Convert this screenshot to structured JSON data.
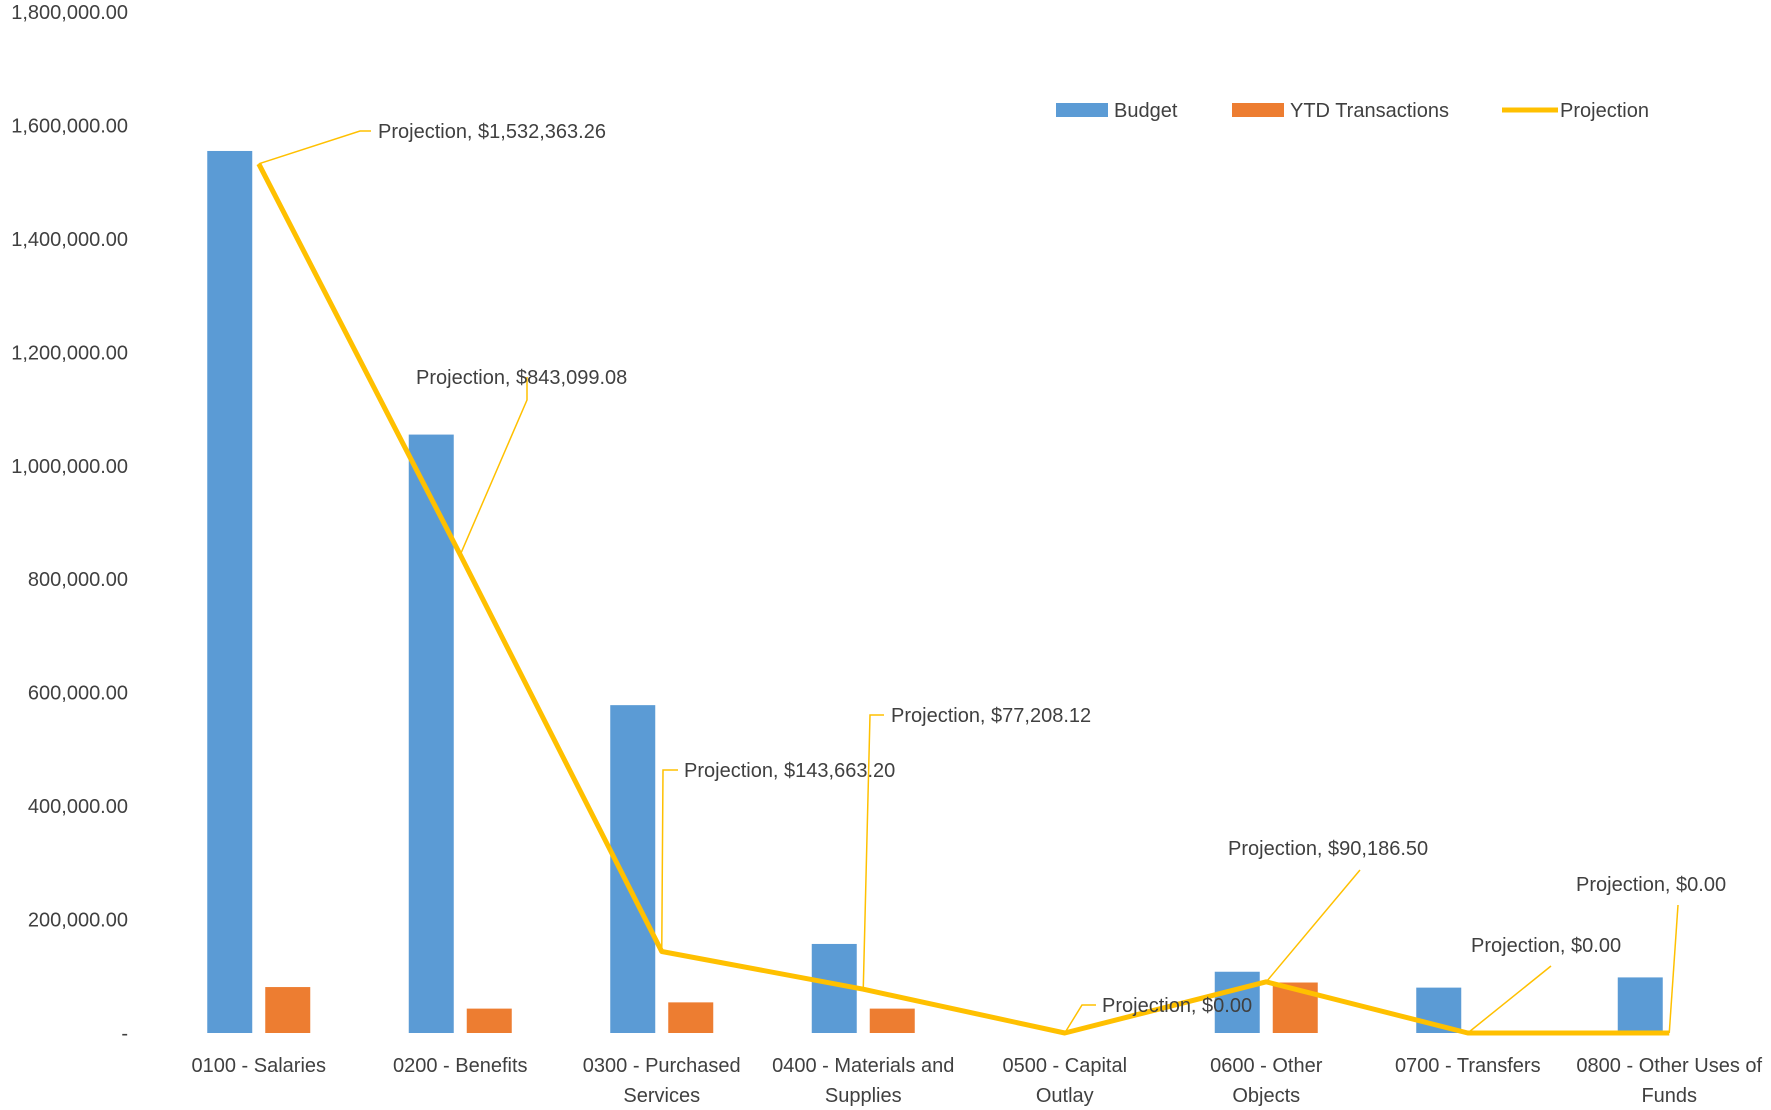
{
  "chart_data": {
    "type": "bar",
    "categories": [
      [
        "0100 - Salaries"
      ],
      [
        "0200 - Benefits"
      ],
      [
        "0300 - Purchased",
        "Services"
      ],
      [
        "0400 - Materials and",
        "Supplies"
      ],
      [
        "0500 - Capital",
        "Outlay"
      ],
      [
        "0600 - Other",
        "Objects"
      ],
      [
        "0700 - Transfers"
      ],
      [
        "0800 - Other Uses of",
        "Funds"
      ]
    ],
    "series": [
      {
        "name": "Budget",
        "type": "bar",
        "color": "#5B9BD5",
        "values": [
          1555000,
          1055000,
          578000,
          157000,
          0,
          108000,
          80000,
          98000
        ]
      },
      {
        "name": "YTD Transactions",
        "type": "bar",
        "color": "#ED7D31",
        "values": [
          81000,
          43000,
          54000,
          43000,
          0,
          89000,
          0,
          0
        ]
      },
      {
        "name": "Projection",
        "type": "line",
        "color": "#FFC000",
        "values": [
          1532363.26,
          843099.08,
          143663.2,
          77208.12,
          0,
          90186.5,
          0,
          0
        ]
      }
    ],
    "data_labels": [
      "Projection, $1,532,363.26",
      "Projection, $843,099.08",
      "Projection, $143,663.20",
      "Projection, $77,208.12",
      "Projection, $0.00",
      "Projection, $90,186.50",
      "Projection, $0.00",
      "Projection, $0.00"
    ],
    "y_ticks": [
      "-",
      "200,000.00",
      "400,000.00",
      "600,000.00",
      "800,000.00",
      "1,000,000.00",
      "1,200,000.00",
      "1,400,000.00",
      "1,600,000.00",
      "1,800,000.00"
    ],
    "ylim": [
      0,
      1800000
    ],
    "grid": false,
    "legend_position": "top-right",
    "title": "",
    "xlabel": "",
    "ylabel": ""
  }
}
